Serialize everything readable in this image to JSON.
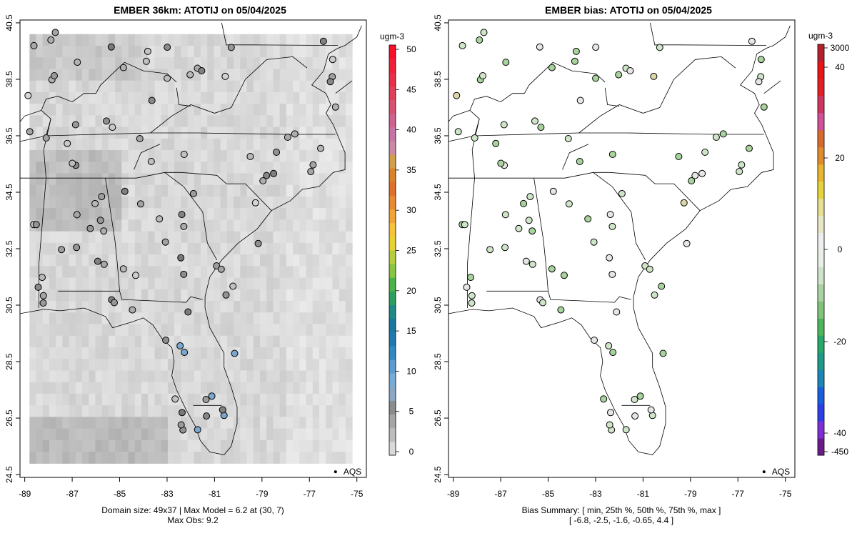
{
  "left_panel": {
    "title": "EMBER 36km: ATOTIJ on 05/04/2025",
    "colorbar_unit": "ugm-3",
    "colorbar_ticks": [
      "0",
      "5",
      "10",
      "15",
      "20",
      "25",
      "30",
      "35",
      "40",
      "45",
      "50"
    ],
    "legend_label": "AQS",
    "caption_line1": "Domain size: 49x37 | Max Model = 6.2 at (30, 7)",
    "caption_line2": "Max Obs: 9.2"
  },
  "right_panel": {
    "title": "EMBER bias: ATOTIJ on 05/04/2025",
    "colorbar_unit": "ugm-3",
    "colorbar_ticks": [
      "3000",
      "40",
      "20",
      "0",
      "-20",
      "-40",
      "-450"
    ],
    "legend_label": "AQS",
    "caption_line1": "Bias Summary: [ min, 25th %, 50th %, 75th %, max ]",
    "caption_line2": "[ -6.8,   -2.5,   -1.6,   -0.65,   4.4 ]"
  },
  "axes": {
    "x_ticks": [
      "-89",
      "-87",
      "-85",
      "-83",
      "-81",
      "-79",
      "-77",
      "-75"
    ],
    "y_ticks": [
      "40.5",
      "38.5",
      "36.5",
      "34.5",
      "32.5",
      "30.5",
      "28.5",
      "26.5",
      "24.5"
    ],
    "lon_range": [
      -89.2,
      -74.6
    ],
    "lat_range": [
      24.4,
      40.6
    ]
  },
  "chart_data": [
    {
      "type": "map",
      "title": "EMBER 36km: ATOTIJ on 05/04/2025",
      "variable": "ATOTIJ",
      "units": "ugm-3",
      "color_range": [
        0,
        50
      ],
      "model_max": 6.2,
      "model_max_location": [
        30,
        7
      ],
      "obs_max": 9.2,
      "domain_size": "49x37",
      "observation_network": "AQS"
    },
    {
      "type": "map",
      "title": "EMBER bias: ATOTIJ on 05/04/2025",
      "variable": "ATOTIJ bias",
      "units": "ugm-3",
      "bias_summary": {
        "min": -6.8,
        "p25": -2.5,
        "p50": -1.6,
        "p75": -0.65,
        "max": 4.4
      },
      "observation_network": "AQS"
    }
  ]
}
